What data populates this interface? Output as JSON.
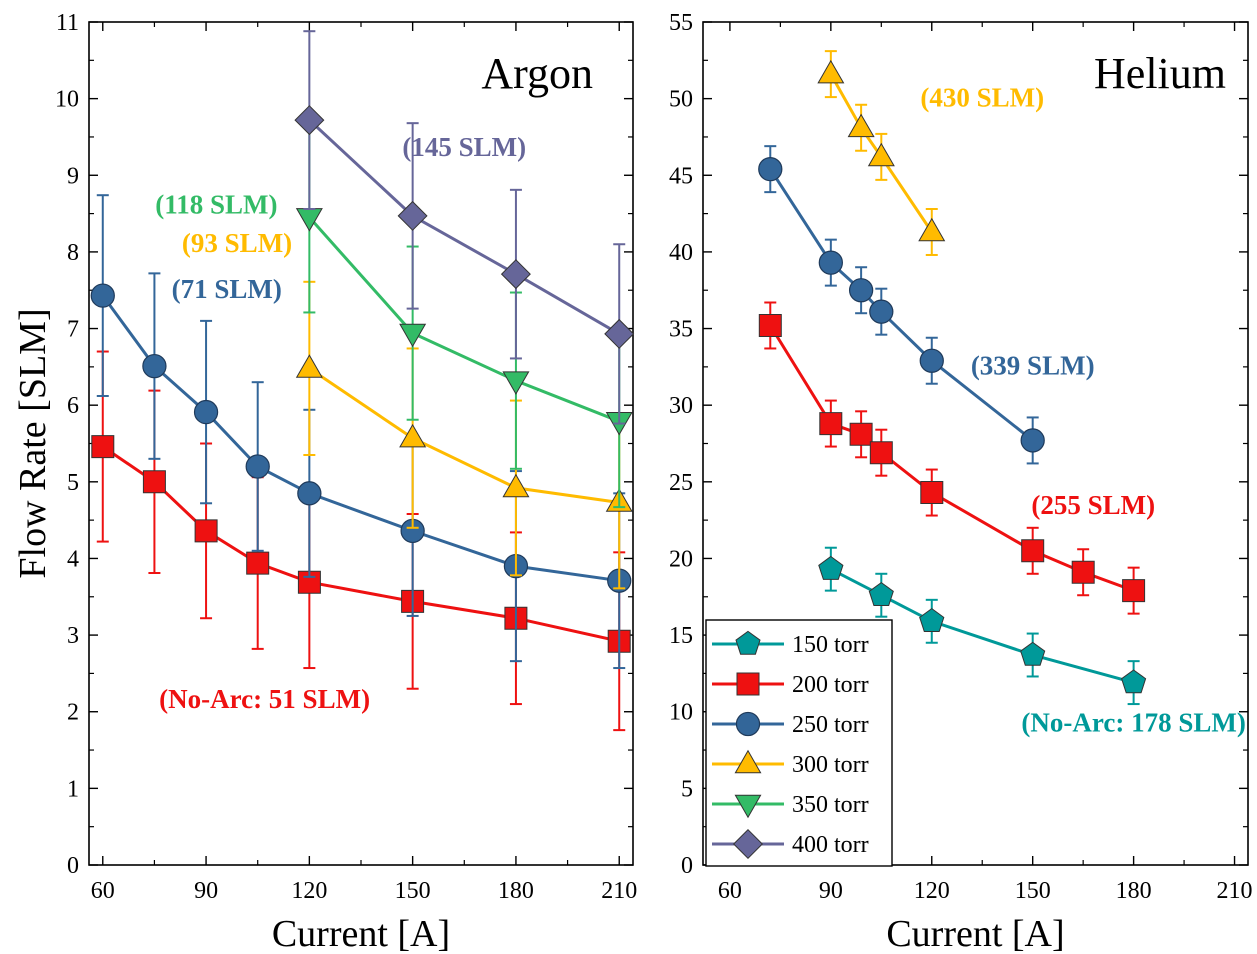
{
  "legend": [
    {
      "label": "150 torr",
      "color": "#009999",
      "marker": "pentagon"
    },
    {
      "label": "200 torr",
      "color": "#EE1111",
      "marker": "square"
    },
    {
      "label": "250 torr",
      "color": "#336699",
      "marker": "circle"
    },
    {
      "label": "300 torr",
      "color": "#FFBB00",
      "marker": "triangle-up"
    },
    {
      "label": "350 torr",
      "color": "#33BB66",
      "marker": "triangle-down"
    },
    {
      "label": "400 torr",
      "color": "#666699",
      "marker": "diamond"
    }
  ],
  "chart_data": [
    {
      "type": "line",
      "title": "Argon",
      "xlabel": "Current [A]",
      "ylabel": "Flow Rate [SLM]",
      "xlim": [
        56,
        214
      ],
      "ylim": [
        0,
        11
      ],
      "xticks": [
        60,
        90,
        120,
        150,
        180,
        210
      ],
      "xtick_labels": [
        "60",
        "90",
        "120",
        "150",
        "180",
        "210"
      ],
      "yticks": [
        0,
        1,
        2,
        3,
        4,
        5,
        6,
        7,
        8,
        9,
        10,
        11
      ],
      "ytick_labels": [
        "0",
        "1",
        "2",
        "3",
        "4",
        "5",
        "6",
        "7",
        "8",
        "9",
        "10",
        "11"
      ],
      "series": [
        {
          "name": "200 torr",
          "color": "#EE1111",
          "marker": "square",
          "x": [
            60,
            75,
            90,
            105,
            120,
            150,
            180,
            210
          ],
          "y": [
            5.46,
            5.0,
            4.36,
            3.94,
            3.69,
            3.44,
            3.22,
            2.92
          ],
          "err": [
            1.24,
            1.19,
            1.14,
            1.12,
            1.12,
            1.14,
            1.12,
            1.16
          ]
        },
        {
          "name": "250 torr",
          "color": "#336699",
          "marker": "circle",
          "x": [
            60,
            75,
            90,
            105,
            120,
            150,
            180,
            210
          ],
          "y": [
            7.43,
            6.51,
            5.91,
            5.2,
            4.85,
            4.36,
            3.9,
            3.71
          ],
          "err": [
            1.31,
            1.21,
            1.19,
            1.1,
            1.09,
            1.11,
            1.24,
            1.14
          ]
        },
        {
          "name": "300 torr",
          "color": "#FFBB00",
          "marker": "triangle-up",
          "x": [
            120,
            150,
            180,
            210
          ],
          "y": [
            6.48,
            5.57,
            4.92,
            4.73
          ],
          "err": [
            1.13,
            1.17,
            1.14,
            1.12
          ]
        },
        {
          "name": "350 torr",
          "color": "#33BB66",
          "marker": "triangle-down",
          "x": [
            120,
            150,
            180,
            210
          ],
          "y": [
            8.45,
            6.94,
            6.32,
            5.79
          ],
          "err": [
            1.24,
            1.13,
            1.15,
            1.12
          ]
        },
        {
          "name": "400 torr",
          "color": "#666699",
          "marker": "diamond",
          "x": [
            120,
            150,
            180,
            210
          ],
          "y": [
            9.72,
            8.47,
            7.71,
            6.93
          ],
          "err": [
            1.16,
            1.21,
            1.1,
            1.17
          ]
        }
      ],
      "annotations": [
        {
          "text": "(145 SLM)",
          "color": "#666699",
          "x": 165,
          "y": 9.25
        },
        {
          "text": "(118 SLM)",
          "color": "#33BB66",
          "x": 93,
          "y": 8.5
        },
        {
          "text": "(93 SLM)",
          "color": "#FFBB00",
          "x": 99,
          "y": 8.0
        },
        {
          "text": "(71 SLM)",
          "color": "#336699",
          "x": 96,
          "y": 7.4
        },
        {
          "text": "(No-Arc: 51 SLM)",
          "color": "#EE1111",
          "x": 107,
          "y": 2.05
        }
      ]
    },
    {
      "type": "line",
      "title": "Helium",
      "xlabel": "Current [A]",
      "xlim": [
        52,
        214
      ],
      "ylim": [
        0,
        55
      ],
      "xticks": [
        60,
        90,
        120,
        150,
        180,
        210
      ],
      "xtick_labels": [
        "60",
        "90",
        "120",
        "150",
        "180",
        "210"
      ],
      "yticks": [
        0,
        5,
        10,
        15,
        20,
        25,
        30,
        35,
        40,
        45,
        50,
        55
      ],
      "ytick_labels": [
        "0",
        "5",
        "10",
        "15",
        "20",
        "25",
        "30",
        "35",
        "40",
        "45",
        "50",
        "55"
      ],
      "series": [
        {
          "name": "150 torr",
          "color": "#009999",
          "marker": "pentagon",
          "x": [
            90,
            105,
            120,
            150,
            180
          ],
          "y": [
            19.3,
            17.6,
            15.9,
            13.7,
            11.9
          ],
          "err": [
            1.4,
            1.4,
            1.4,
            1.4,
            1.4
          ]
        },
        {
          "name": "200 torr",
          "color": "#EE1111",
          "marker": "square",
          "x": [
            72,
            90,
            99,
            105,
            120,
            150,
            165,
            180
          ],
          "y": [
            35.2,
            28.8,
            28.1,
            26.9,
            24.3,
            20.5,
            19.1,
            17.9
          ],
          "err": [
            1.5,
            1.5,
            1.5,
            1.5,
            1.5,
            1.5,
            1.5,
            1.5
          ]
        },
        {
          "name": "250 torr",
          "color": "#336699",
          "marker": "circle",
          "x": [
            72,
            90,
            99,
            105,
            120,
            150
          ],
          "y": [
            45.4,
            39.3,
            37.5,
            36.1,
            32.9,
            27.7
          ],
          "err": [
            1.5,
            1.5,
            1.5,
            1.5,
            1.5,
            1.5
          ]
        },
        {
          "name": "300 torr",
          "color": "#FFBB00",
          "marker": "triangle-up",
          "x": [
            90,
            99,
            105,
            120
          ],
          "y": [
            51.6,
            48.1,
            46.2,
            41.3
          ],
          "err": [
            1.5,
            1.5,
            1.5,
            1.5
          ]
        }
      ],
      "annotations": [
        {
          "text": "(430 SLM)",
          "color": "#FFBB00",
          "x": 135,
          "y": 49.5
        },
        {
          "text": "(339 SLM)",
          "color": "#336699",
          "x": 150,
          "y": 32.0
        },
        {
          "text": "(255 SLM)",
          "color": "#EE1111",
          "x": 168,
          "y": 22.9
        },
        {
          "text": "(No-Arc: 178 SLM)",
          "color": "#009999",
          "x": 180,
          "y": 8.7
        }
      ]
    }
  ]
}
